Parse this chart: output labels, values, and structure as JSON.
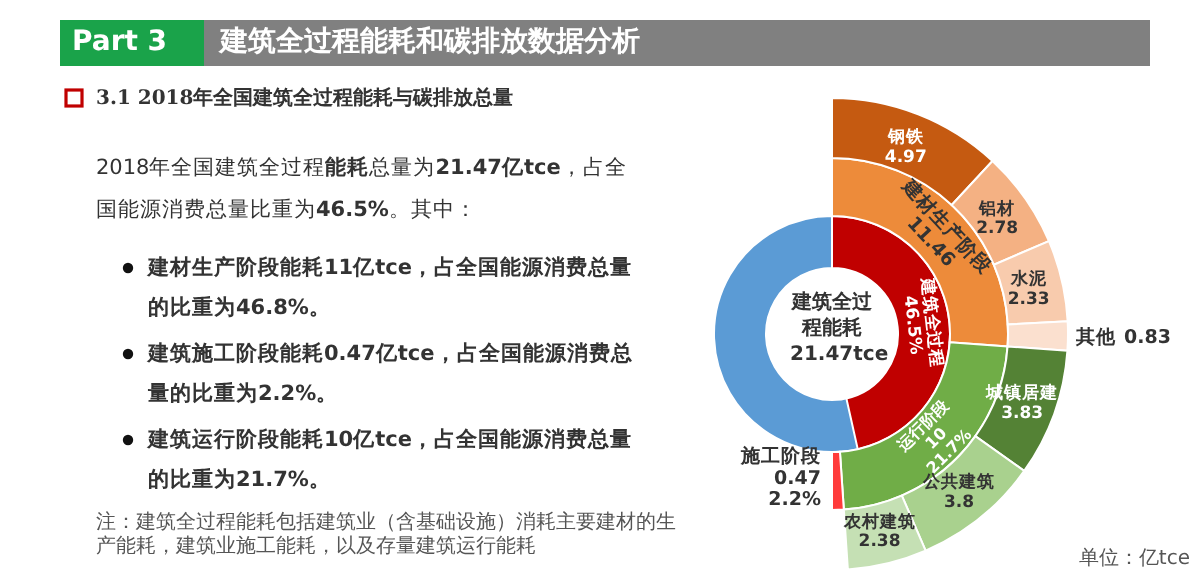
{
  "chart_data": {
    "type": "other",
    "title": "建筑全过程能耗和碳排放数据分析",
    "subtitle": "3.1 2018年全国建筑全过程能耗与碳排放总量",
    "annotations": [
      "Part 3",
      "2018年全国建筑全过程**能耗**总量为**21.47亿tce**，占全国能源消费总量比重为**46.5%**。其中：",
      "建材生产阶段能耗**11亿tce**，占全国能源消费总量的比重为**46.8%**。",
      "建筑施工阶段能耗**0.47亿tce**，占全国能源消费总量的比重为**2.2%**。",
      "建筑运行阶段能耗**10亿tce**，占全国能源消费总量的比重为**21.7%**。",
      "注：建筑全过程能耗包括建筑业（含基础设施）消耗主要建材的生产能耗，建筑业施工能耗，以及存量建筑运行能耗",
      "建筑全过程能耗",
      "21.47tce",
      "单位：亿tce",
      {
        "text": "21.7%",
        "x": "运行阶段"
      },
      {
        "text": "2.2%",
        "x": "施工阶段"
      }
    ],
    "categories": [
      "建材生产阶段",
      "运行阶段",
      "施工阶段"
    ],
    "values": [
      11.46,
      10,
      0.47
    ],
    "colors": [
      "#ed8b3a",
      "#70ad47",
      "#ff3b3b"
    ],
    "data_labels": true,
    "series": [
      {
        "type": "donut",
        "name": "建筑全过程",
        "color": "#5b9bd5",
        "values": [
          46.5,
          null,
          null
        ],
        "value_labels": [
          "46.5%",
          null,
          null
        ],
        "colors": [
          "#c00000",
          null,
          null
        ]
      },
      {
        "name": "钢铁",
        "color": "#c55a11",
        "values": [
          4.97,
          null,
          null
        ]
      },
      {
        "name": "铝材",
        "color": "#f4b183",
        "values": [
          2.78,
          null,
          null
        ]
      },
      {
        "name": "水泥",
        "color": "#f8cbad",
        "values": [
          2.33,
          null,
          null
        ]
      },
      {
        "name": "其他",
        "color": "#fbe0cf",
        "values": [
          0.83,
          null,
          null
        ]
      },
      {
        "name": "城镇居建",
        "color": "#548235",
        "values": [
          null,
          3.83,
          null
        ]
      },
      {
        "name": "公共建筑",
        "color": "#a9d18e",
        "values": [
          null,
          3.8,
          null
        ]
      },
      {
        "name": "农村建筑",
        "color": "#c5e0b4",
        "values": [
          null,
          2.38,
          null
        ]
      }
    ]
  }
}
